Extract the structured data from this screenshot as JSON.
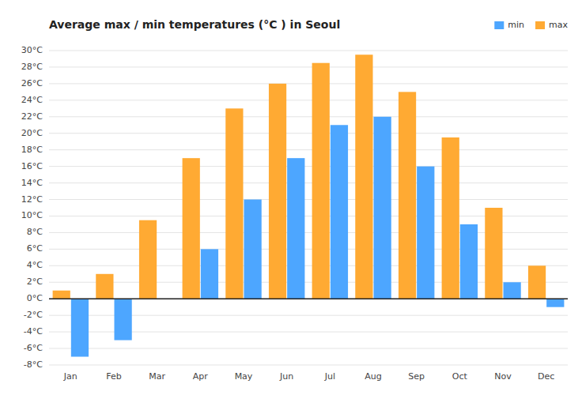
{
  "chart_data": {
    "type": "bar",
    "title": "Average max / min temperatures (°C ) in Seoul",
    "categories": [
      "Jan",
      "Feb",
      "Mar",
      "Apr",
      "May",
      "Jun",
      "Jul",
      "Aug",
      "Sep",
      "Oct",
      "Nov",
      "Dec"
    ],
    "series": [
      {
        "name": "max",
        "color": "#ffaa33",
        "values": [
          1,
          3,
          9.5,
          17,
          23,
          26,
          28.5,
          29.5,
          25,
          19.5,
          11,
          4
        ]
      },
      {
        "name": "min",
        "color": "#4da6ff",
        "values": [
          -7,
          -5,
          0,
          6,
          12,
          17,
          21,
          22,
          16,
          9,
          2,
          -1
        ]
      }
    ],
    "ylim": [
      -8,
      30
    ],
    "yticks": [
      {
        "value": -8,
        "label": "-8°C"
      },
      {
        "value": -6,
        "label": "-6°C"
      },
      {
        "value": -4,
        "label": "-4°C"
      },
      {
        "value": -2,
        "label": "-2°C"
      },
      {
        "value": 0,
        "label": "0°C"
      },
      {
        "value": 2,
        "label": "2°C"
      },
      {
        "value": 4,
        "label": "4°C"
      },
      {
        "value": 6,
        "label": "6°C"
      },
      {
        "value": 8,
        "label": "8°C"
      },
      {
        "value": 10,
        "label": "10°C"
      },
      {
        "value": 12,
        "label": "12°C"
      },
      {
        "value": 14,
        "label": "14°C"
      },
      {
        "value": 16,
        "label": "16°C"
      },
      {
        "value": 18,
        "label": "18°C"
      },
      {
        "value": 20,
        "label": "20°C"
      },
      {
        "value": 22,
        "label": "22°C"
      },
      {
        "value": 24,
        "label": "24°C"
      },
      {
        "value": 26,
        "label": "26°C"
      },
      {
        "value": 28,
        "label": "28°C"
      },
      {
        "value": 30,
        "label": "30°C"
      }
    ],
    "grid": true,
    "legend": "upper right"
  }
}
